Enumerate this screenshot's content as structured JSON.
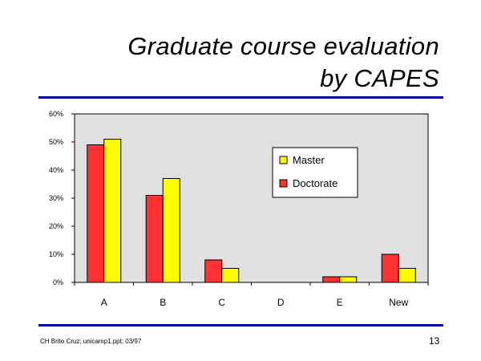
{
  "slide": {
    "title_line1": "Graduate course evaluation",
    "title_line2": "by CAPES",
    "footer": "CH Brito Cruz; unicamp1.ppt; 03/97",
    "page_number": "13"
  },
  "chart_data": {
    "type": "bar",
    "categories": [
      "A",
      "B",
      "C",
      "D",
      "E",
      "New"
    ],
    "series": [
      {
        "name": "Doctorate",
        "color": "#ff3333",
        "values": [
          49,
          31,
          8,
          0,
          2,
          10
        ]
      },
      {
        "name": "Master",
        "color": "#ffff00",
        "values": [
          51,
          37,
          5,
          0,
          2,
          5
        ]
      }
    ],
    "legend_order": [
      "Master",
      "Doctorate"
    ],
    "legend_position": "top-right",
    "ylim": [
      0,
      60
    ],
    "yticks": [
      0,
      10,
      20,
      30,
      40,
      50,
      60
    ],
    "ytick_labels": [
      "0%",
      "10%",
      "20%",
      "30%",
      "40%",
      "50%",
      "60%"
    ],
    "plot_background": "#e0e0e0",
    "grid": false
  }
}
